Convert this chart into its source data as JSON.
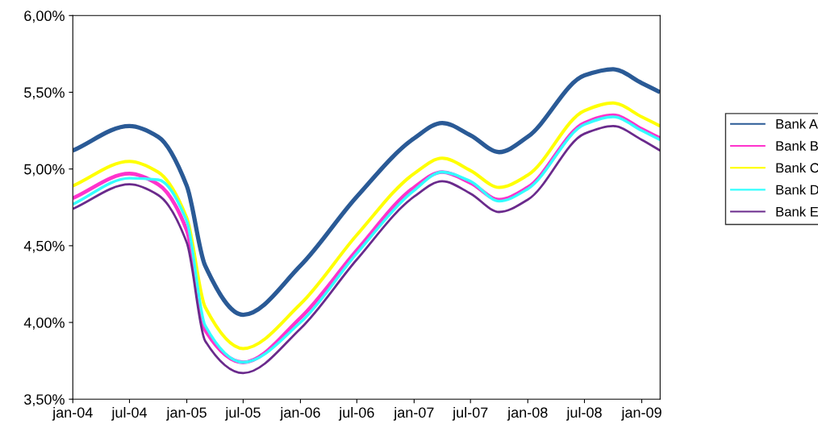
{
  "chart_data": {
    "type": "line",
    "x": [
      "2004-01",
      "2004-07",
      "2004-10",
      "2005-01",
      "2005-03",
      "2005-07",
      "2006-01",
      "2006-07",
      "2007-01",
      "2007-04",
      "2007-07",
      "2007-10",
      "2008-01",
      "2008-07",
      "2008-10",
      "2009-01",
      "2009-03"
    ],
    "series": [
      {
        "name": "Bank A",
        "color": "#2a5a96",
        "values": [
          5.12,
          5.28,
          5.21,
          4.89,
          4.37,
          4.05,
          4.37,
          4.82,
          5.2,
          5.3,
          5.22,
          5.11,
          5.21,
          5.61,
          5.65,
          5.56,
          5.5
        ]
      },
      {
        "name": "Bank B",
        "color": "#ff33cc",
        "values": [
          4.81,
          4.97,
          4.9,
          4.6,
          3.95,
          3.74,
          4.03,
          4.47,
          4.88,
          4.98,
          4.91,
          4.8,
          4.88,
          5.3,
          5.35,
          5.26,
          5.2
        ]
      },
      {
        "name": "Bank C",
        "color": "#ffff00",
        "values": [
          4.89,
          5.05,
          4.98,
          4.68,
          4.1,
          3.83,
          4.12,
          4.57,
          4.97,
          5.07,
          4.99,
          4.88,
          4.96,
          5.38,
          5.43,
          5.34,
          5.28
        ]
      },
      {
        "name": "Bank D",
        "color": "#33ffff",
        "values": [
          4.77,
          4.94,
          4.93,
          4.66,
          3.98,
          3.74,
          4.0,
          4.45,
          4.86,
          4.98,
          4.92,
          4.79,
          4.87,
          5.29,
          5.34,
          5.25,
          5.19
        ]
      },
      {
        "name": "Bank E",
        "color": "#6a2a8c",
        "values": [
          4.74,
          4.9,
          4.83,
          4.52,
          3.88,
          3.67,
          3.96,
          4.41,
          4.82,
          4.92,
          4.84,
          4.72,
          4.8,
          5.23,
          5.28,
          5.19,
          5.12
        ]
      }
    ],
    "xlim": [
      "2004-01",
      "2009-03"
    ],
    "xticks": [
      {
        "value": "2004-01",
        "label": "jan-04"
      },
      {
        "value": "2004-07",
        "label": "jul-04"
      },
      {
        "value": "2005-01",
        "label": "jan-05"
      },
      {
        "value": "2005-07",
        "label": "jul-05"
      },
      {
        "value": "2006-01",
        "label": "jan-06"
      },
      {
        "value": "2006-07",
        "label": "jul-06"
      },
      {
        "value": "2007-01",
        "label": "jan-07"
      },
      {
        "value": "2007-07",
        "label": "jul-07"
      },
      {
        "value": "2008-01",
        "label": "jan-08"
      },
      {
        "value": "2008-07",
        "label": "jul-08"
      },
      {
        "value": "2009-01",
        "label": "jan-09"
      }
    ],
    "ylim": [
      3.5,
      6.0
    ],
    "yticks": [
      {
        "value": 3.5,
        "label": "3,50%"
      },
      {
        "value": 4.0,
        "label": "4,00%"
      },
      {
        "value": 4.5,
        "label": "4,50%"
      },
      {
        "value": 5.0,
        "label": "5,00%"
      },
      {
        "value": 5.5,
        "label": "5,50%"
      },
      {
        "value": 6.0,
        "label": "6,00%"
      }
    ],
    "grid": false,
    "legend": "right",
    "marker": "none",
    "line_style": "solid"
  }
}
